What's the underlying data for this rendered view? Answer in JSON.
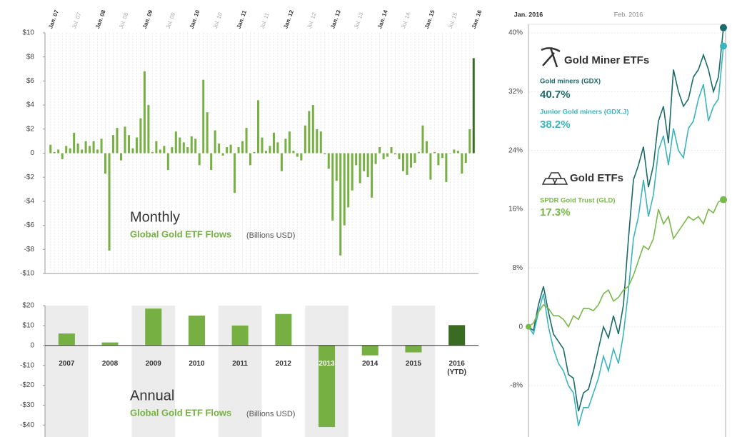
{
  "chart_data": [
    {
      "type": "bar",
      "title": "Monthly",
      "subtitle": "Global Gold ETF Flows",
      "unit_note": "(Billions USD)",
      "color": "#76b043",
      "last_color": "#3a6b23",
      "categories": [
        "Jan. 07",
        null,
        null,
        null,
        null,
        null,
        "Jul. 07",
        null,
        null,
        null,
        null,
        null,
        "Jan. 08",
        null,
        null,
        null,
        null,
        null,
        "Jul. 08",
        null,
        null,
        null,
        null,
        null,
        "Jan. 09",
        null,
        null,
        null,
        null,
        null,
        "Jul. 09",
        null,
        null,
        null,
        null,
        null,
        "Jan. 10",
        null,
        null,
        null,
        null,
        null,
        "Jul. 10",
        null,
        null,
        null,
        null,
        null,
        "Jan. 11",
        null,
        null,
        null,
        null,
        null,
        "Jul. 11",
        null,
        null,
        null,
        null,
        null,
        "Jan. 12",
        null,
        null,
        null,
        null,
        null,
        "Jul. 12",
        null,
        null,
        null,
        null,
        null,
        "Jan. 13",
        null,
        null,
        null,
        null,
        null,
        "Jul. 13",
        null,
        null,
        null,
        null,
        null,
        "Jan. 14",
        null,
        null,
        null,
        null,
        null,
        "Jul. 14",
        null,
        null,
        null,
        null,
        null,
        "Jan. 15",
        null,
        null,
        null,
        null,
        null,
        "Jul. 15",
        null,
        null,
        null,
        null,
        null,
        "Jan. 16"
      ],
      "values": [
        0.7,
        0.1,
        0.3,
        -0.5,
        0.6,
        0.4,
        1.7,
        0.8,
        0.3,
        1.0,
        0.6,
        1.0,
        0.3,
        1.2,
        -1.7,
        -8.1,
        1.5,
        2.1,
        -0.6,
        2.2,
        1.5,
        0.4,
        1.3,
        2.9,
        6.8,
        4.0,
        0.1,
        1.0,
        0.3,
        0.6,
        -1.4,
        0.5,
        1.8,
        1.3,
        0.9,
        0.5,
        1.4,
        1.2,
        -1.0,
        6.1,
        3.4,
        -1.4,
        1.9,
        0.8,
        -0.2,
        0.5,
        0.7,
        -3.3,
        0.5,
        1.0,
        2.1,
        -1.0,
        0.1,
        4.4,
        1.3,
        0.2,
        0.6,
        1.7,
        0.9,
        -1.5,
        1.2,
        1.8,
        0.2,
        -0.3,
        -0.6,
        2.3,
        3.5,
        4.0,
        2.0,
        1.8,
        -0.1,
        -1.3,
        -5.6,
        -2.3,
        -8.5,
        -6.0,
        -4.5,
        -3.1,
        -1.0,
        -2.5,
        -1.5,
        -2.0,
        -3.7,
        -0.9,
        0.5,
        -0.5,
        -0.3,
        0.5,
        -0.1,
        -0.5,
        -1.5,
        -1.8,
        -1.2,
        -0.8,
        0.1,
        2.3,
        1.0,
        -2.2,
        0.1,
        -1.0,
        -0.4,
        -2.4,
        0.0,
        0.3,
        0.2,
        -1.7,
        -0.8,
        2.0,
        7.9
      ],
      "ylim": [
        -10,
        10
      ],
      "yticks": [
        {
          "value": 10,
          "label": "$10"
        },
        {
          "value": 8,
          "label": "$8"
        },
        {
          "value": 6,
          "label": "$6"
        },
        {
          "value": 4,
          "label": "$4"
        },
        {
          "value": 2,
          "label": "$2"
        },
        0,
        {
          "value": -2,
          "label": "-$2"
        },
        {
          "value": -4,
          "label": "-$4"
        },
        {
          "value": -6,
          "label": "-$6"
        },
        {
          "value": -8,
          "label": "-$8"
        },
        {
          "value": -10,
          "label": "-$10"
        }
      ]
    },
    {
      "type": "bar",
      "title": "Annual",
      "subtitle": "Global Gold ETF Flows",
      "unit_note": "(Billions USD)",
      "color": "#76b043",
      "last_color": "#3a6b23",
      "categories": [
        "2007",
        "2008",
        "2009",
        "2010",
        "2011",
        "2012",
        "2013",
        "2014",
        "2015",
        "2016 (YTD)"
      ],
      "values": [
        6,
        1.5,
        18.5,
        15,
        10,
        15.8,
        -41,
        -5,
        -3.5,
        10.2
      ],
      "ylim": [
        -46,
        20
      ],
      "yticks": [
        {
          "value": 20,
          "label": "$20"
        },
        {
          "value": 10,
          "label": "$10"
        },
        0,
        {
          "value": -10,
          "label": "-$10"
        },
        {
          "value": -20,
          "label": "-$20"
        },
        {
          "value": -30,
          "label": "-$30"
        },
        {
          "value": -40,
          "label": "-$40"
        }
      ]
    },
    {
      "type": "line",
      "group_titles": [
        "Gold Miner ETFs",
        "Gold ETFs"
      ],
      "categories": [
        "Jan. 2016",
        null,
        null,
        null,
        null,
        null,
        null,
        null,
        null,
        null,
        null,
        null,
        null,
        null,
        null,
        null,
        null,
        null,
        null,
        null,
        "Feb. 2016",
        null,
        null,
        null,
        null,
        null,
        null,
        null,
        null,
        null,
        null,
        null,
        null,
        null,
        null,
        null,
        null,
        null,
        null,
        null
      ],
      "series": [
        {
          "name": "Gold miners (GDX)",
          "color": "#1c6b6b",
          "last_value_label": "40.7%",
          "values": [
            0,
            -0.5,
            3,
            5.5,
            2,
            -1,
            -2,
            -3,
            -6.5,
            -7,
            -11.5,
            -9,
            -8.5,
            -6,
            -3,
            0,
            -1.5,
            1.5,
            -1,
            3,
            12,
            20,
            22,
            24.5,
            19,
            22,
            28,
            30,
            25,
            35,
            32,
            30,
            31,
            34,
            35,
            37,
            35,
            32,
            34,
            40.7
          ]
        },
        {
          "name": "Junior Gold miners (GDX.J)",
          "color": "#3bb5bd",
          "last_value_label": "38.2%",
          "values": [
            0,
            -1,
            2,
            4.5,
            0,
            -3,
            -5,
            -6,
            -8,
            -9,
            -13.5,
            -11,
            -11,
            -9,
            -7,
            -4,
            -6,
            -3,
            -5,
            -1,
            5,
            12,
            15,
            20,
            15,
            18,
            24,
            26,
            22,
            27,
            24,
            23,
            27,
            28,
            31,
            33,
            28,
            30,
            31,
            38.2
          ]
        },
        {
          "name": "SPDR Gold Trust (GLD)",
          "color": "#79b84a",
          "last_value_label": "17.3%",
          "values": [
            0,
            0.5,
            2,
            3,
            2.5,
            1.5,
            1.5,
            1,
            0,
            1.5,
            1,
            2.5,
            2.5,
            2.2,
            3,
            4.5,
            5,
            3.5,
            4,
            5,
            5.5,
            7,
            9,
            11,
            10.5,
            12,
            16,
            14,
            15,
            12,
            13,
            14,
            15,
            14.5,
            15,
            14,
            16,
            15.5,
            17,
            17.3
          ]
        }
      ],
      "ylim": [
        -15,
        40
      ],
      "yticks": [
        {
          "value": 40,
          "label": "40%"
        },
        {
          "value": 32,
          "label": "32%"
        },
        {
          "value": 24,
          "label": "24%"
        },
        {
          "value": 16,
          "label": "16%"
        },
        {
          "value": 8,
          "label": "8%"
        },
        0,
        {
          "value": -8,
          "label": "-8%"
        }
      ]
    }
  ]
}
